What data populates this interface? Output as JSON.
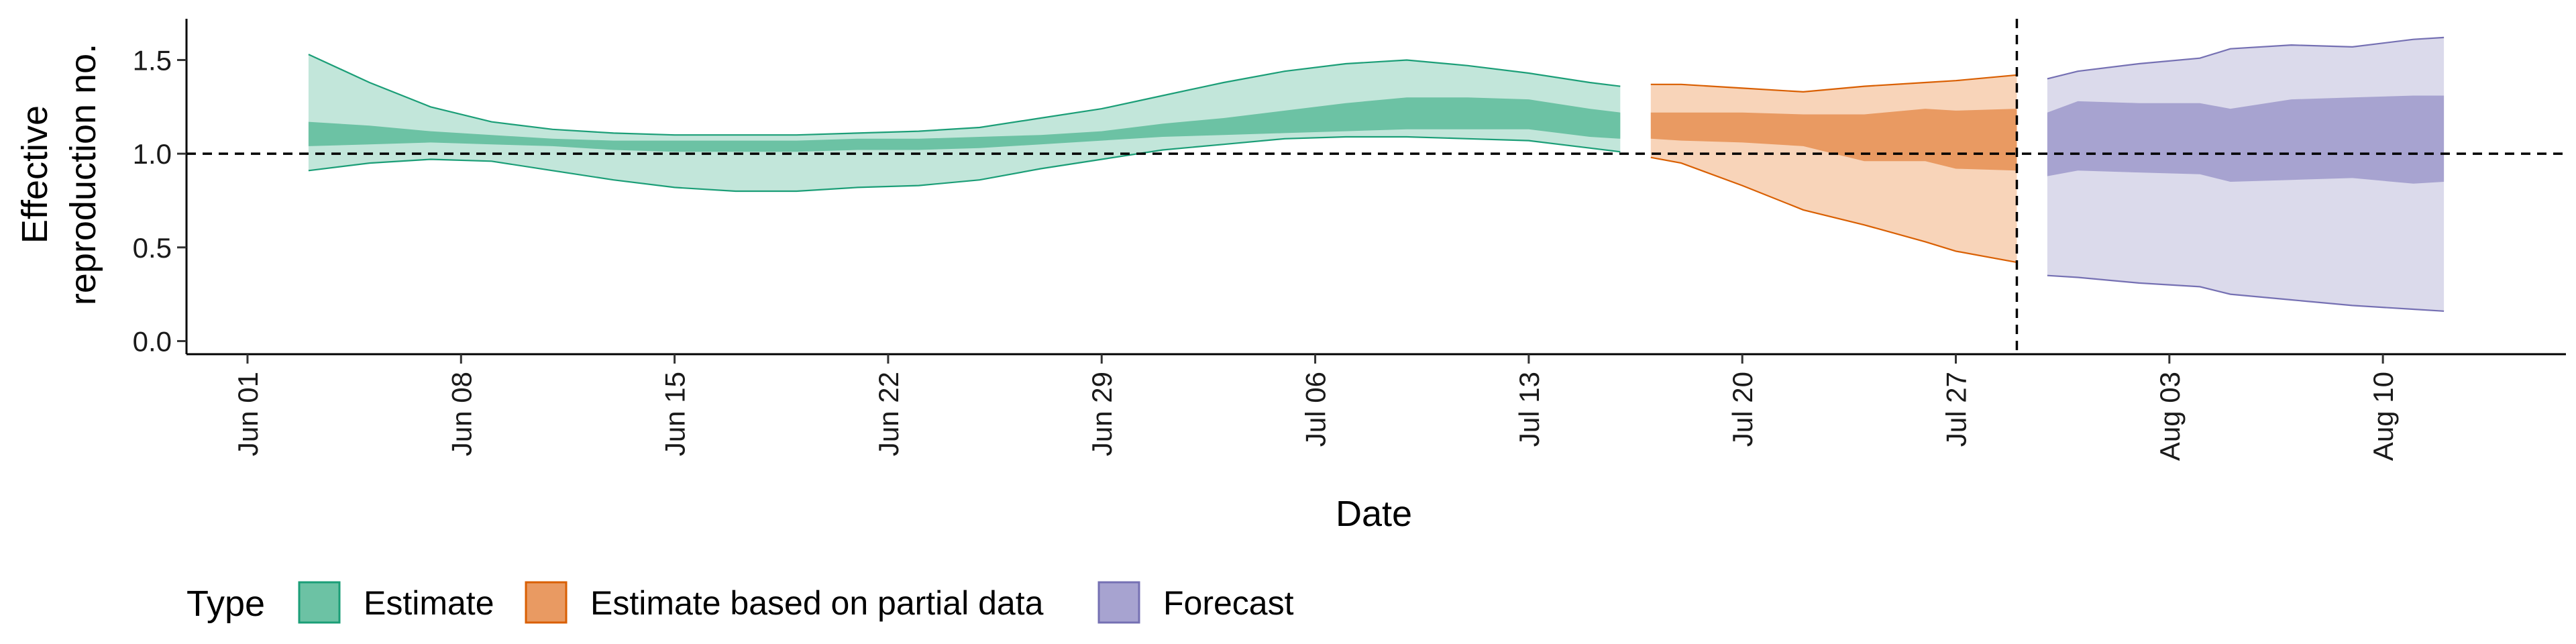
{
  "chart_data": {
    "type": "area",
    "title": "",
    "xlabel": "Date",
    "ylabel_lines": [
      "Effective",
      "reproduction no."
    ],
    "x_ticks": [
      "2020-06-01",
      "2020-06-08",
      "2020-06-15",
      "2020-06-22",
      "2020-06-29",
      "2020-07-06",
      "2020-07-13",
      "2020-07-20",
      "2020-07-27",
      "2020-08-03",
      "2020-08-10"
    ],
    "x_tick_labels": [
      "Jun 01",
      "Jun 08",
      "Jun 15",
      "Jun 22",
      "Jun 29",
      "Jul 06",
      "Jul 13",
      "Jul 20",
      "Jul 27",
      "Aug 03",
      "Aug 10"
    ],
    "xlim": [
      "2020-05-30",
      "2020-08-16"
    ],
    "y_ticks": [
      0.0,
      0.5,
      1.0,
      1.5
    ],
    "y_tick_labels": [
      "0.0",
      "0.5",
      "1.0",
      "1.5"
    ],
    "ylim": [
      -0.07,
      1.72
    ],
    "hline_y": 1.0,
    "vline_x": "2020-07-29",
    "grid": false,
    "legend": {
      "title": "Type",
      "position": "bottom",
      "entries": [
        "Estimate",
        "Estimate based on partial data",
        "Forecast"
      ]
    },
    "series": [
      {
        "name": "Estimate",
        "color_outer": "#c2e6da",
        "color_inner": "#6cc2a4",
        "color_line": "#1b9e77",
        "points": [
          {
            "x": "2020-06-03",
            "lo90": 0.91,
            "lo50": 1.04,
            "hi50": 1.17,
            "hi90": 1.53
          },
          {
            "x": "2020-06-05",
            "lo90": 0.95,
            "lo50": 1.05,
            "hi50": 1.15,
            "hi90": 1.38
          },
          {
            "x": "2020-06-07",
            "lo90": 0.97,
            "lo50": 1.06,
            "hi50": 1.12,
            "hi90": 1.25
          },
          {
            "x": "2020-06-09",
            "lo90": 0.96,
            "lo50": 1.05,
            "hi50": 1.1,
            "hi90": 1.17
          },
          {
            "x": "2020-06-11",
            "lo90": 0.91,
            "lo50": 1.04,
            "hi50": 1.08,
            "hi90": 1.13
          },
          {
            "x": "2020-06-13",
            "lo90": 0.86,
            "lo50": 1.02,
            "hi50": 1.07,
            "hi90": 1.11
          },
          {
            "x": "2020-06-15",
            "lo90": 0.82,
            "lo50": 1.01,
            "hi50": 1.07,
            "hi90": 1.1
          },
          {
            "x": "2020-06-17",
            "lo90": 0.8,
            "lo50": 1.01,
            "hi50": 1.07,
            "hi90": 1.1
          },
          {
            "x": "2020-06-19",
            "lo90": 0.8,
            "lo50": 1.01,
            "hi50": 1.07,
            "hi90": 1.1
          },
          {
            "x": "2020-06-21",
            "lo90": 0.82,
            "lo50": 1.02,
            "hi50": 1.08,
            "hi90": 1.11
          },
          {
            "x": "2020-06-23",
            "lo90": 0.83,
            "lo50": 1.02,
            "hi50": 1.08,
            "hi90": 1.12
          },
          {
            "x": "2020-06-25",
            "lo90": 0.86,
            "lo50": 1.03,
            "hi50": 1.09,
            "hi90": 1.14
          },
          {
            "x": "2020-06-27",
            "lo90": 0.92,
            "lo50": 1.05,
            "hi50": 1.1,
            "hi90": 1.19
          },
          {
            "x": "2020-06-29",
            "lo90": 0.97,
            "lo50": 1.07,
            "hi50": 1.12,
            "hi90": 1.24
          },
          {
            "x": "2020-07-01",
            "lo90": 1.02,
            "lo50": 1.09,
            "hi50": 1.16,
            "hi90": 1.31
          },
          {
            "x": "2020-07-03",
            "lo90": 1.05,
            "lo50": 1.1,
            "hi50": 1.19,
            "hi90": 1.38
          },
          {
            "x": "2020-07-05",
            "lo90": 1.08,
            "lo50": 1.11,
            "hi50": 1.23,
            "hi90": 1.44
          },
          {
            "x": "2020-07-07",
            "lo90": 1.09,
            "lo50": 1.12,
            "hi50": 1.27,
            "hi90": 1.48
          },
          {
            "x": "2020-07-09",
            "lo90": 1.09,
            "lo50": 1.13,
            "hi50": 1.3,
            "hi90": 1.5
          },
          {
            "x": "2020-07-11",
            "lo90": 1.08,
            "lo50": 1.13,
            "hi50": 1.3,
            "hi90": 1.47
          },
          {
            "x": "2020-07-13",
            "lo90": 1.07,
            "lo50": 1.13,
            "hi50": 1.29,
            "hi90": 1.43
          },
          {
            "x": "2020-07-15",
            "lo90": 1.03,
            "lo50": 1.09,
            "hi50": 1.24,
            "hi90": 1.38
          },
          {
            "x": "2020-07-16",
            "lo90": 1.01,
            "lo50": 1.08,
            "hi50": 1.22,
            "hi90": 1.36
          }
        ]
      },
      {
        "name": "Estimate based on partial data",
        "color_outer": "#f8d4b9",
        "color_inner": "#e99a62",
        "color_line": "#d95f02",
        "points": [
          {
            "x": "2020-07-17",
            "lo90": 0.98,
            "lo50": 1.08,
            "hi50": 1.22,
            "hi90": 1.37
          },
          {
            "x": "2020-07-18",
            "lo90": 0.95,
            "lo50": 1.07,
            "hi50": 1.22,
            "hi90": 1.37
          },
          {
            "x": "2020-07-20",
            "lo90": 0.83,
            "lo50": 1.06,
            "hi50": 1.22,
            "hi90": 1.35
          },
          {
            "x": "2020-07-22",
            "lo90": 0.7,
            "lo50": 1.04,
            "hi50": 1.21,
            "hi90": 1.33
          },
          {
            "x": "2020-07-24",
            "lo90": 0.62,
            "lo50": 0.96,
            "hi50": 1.21,
            "hi90": 1.36
          },
          {
            "x": "2020-07-26",
            "lo90": 0.53,
            "lo50": 0.96,
            "hi50": 1.24,
            "hi90": 1.38
          },
          {
            "x": "2020-07-27",
            "lo90": 0.48,
            "lo50": 0.92,
            "hi50": 1.23,
            "hi90": 1.39
          },
          {
            "x": "2020-07-29",
            "lo90": 0.42,
            "lo50": 0.91,
            "hi50": 1.24,
            "hi90": 1.42
          }
        ]
      },
      {
        "name": "Forecast",
        "color_outer": "#dbdaeb",
        "color_inner": "#a7a3d0",
        "color_line": "#7570b3",
        "points": [
          {
            "x": "2020-07-30",
            "lo90": 0.35,
            "lo50": 0.88,
            "hi50": 1.22,
            "hi90": 1.4
          },
          {
            "x": "2020-07-31",
            "lo90": 0.34,
            "lo50": 0.91,
            "hi50": 1.28,
            "hi90": 1.44
          },
          {
            "x": "2020-08-02",
            "lo90": 0.31,
            "lo50": 0.9,
            "hi50": 1.27,
            "hi90": 1.48
          },
          {
            "x": "2020-08-04",
            "lo90": 0.29,
            "lo50": 0.89,
            "hi50": 1.27,
            "hi90": 1.51
          },
          {
            "x": "2020-08-05",
            "lo90": 0.25,
            "lo50": 0.85,
            "hi50": 1.24,
            "hi90": 1.56
          },
          {
            "x": "2020-08-07",
            "lo90": 0.22,
            "lo50": 0.86,
            "hi50": 1.29,
            "hi90": 1.58
          },
          {
            "x": "2020-08-09",
            "lo90": 0.19,
            "lo50": 0.87,
            "hi50": 1.3,
            "hi90": 1.57
          },
          {
            "x": "2020-08-11",
            "lo90": 0.17,
            "lo50": 0.84,
            "hi50": 1.31,
            "hi90": 1.61
          },
          {
            "x": "2020-08-12",
            "lo90": 0.16,
            "lo50": 0.85,
            "hi50": 1.31,
            "hi90": 1.62
          }
        ]
      }
    ]
  }
}
